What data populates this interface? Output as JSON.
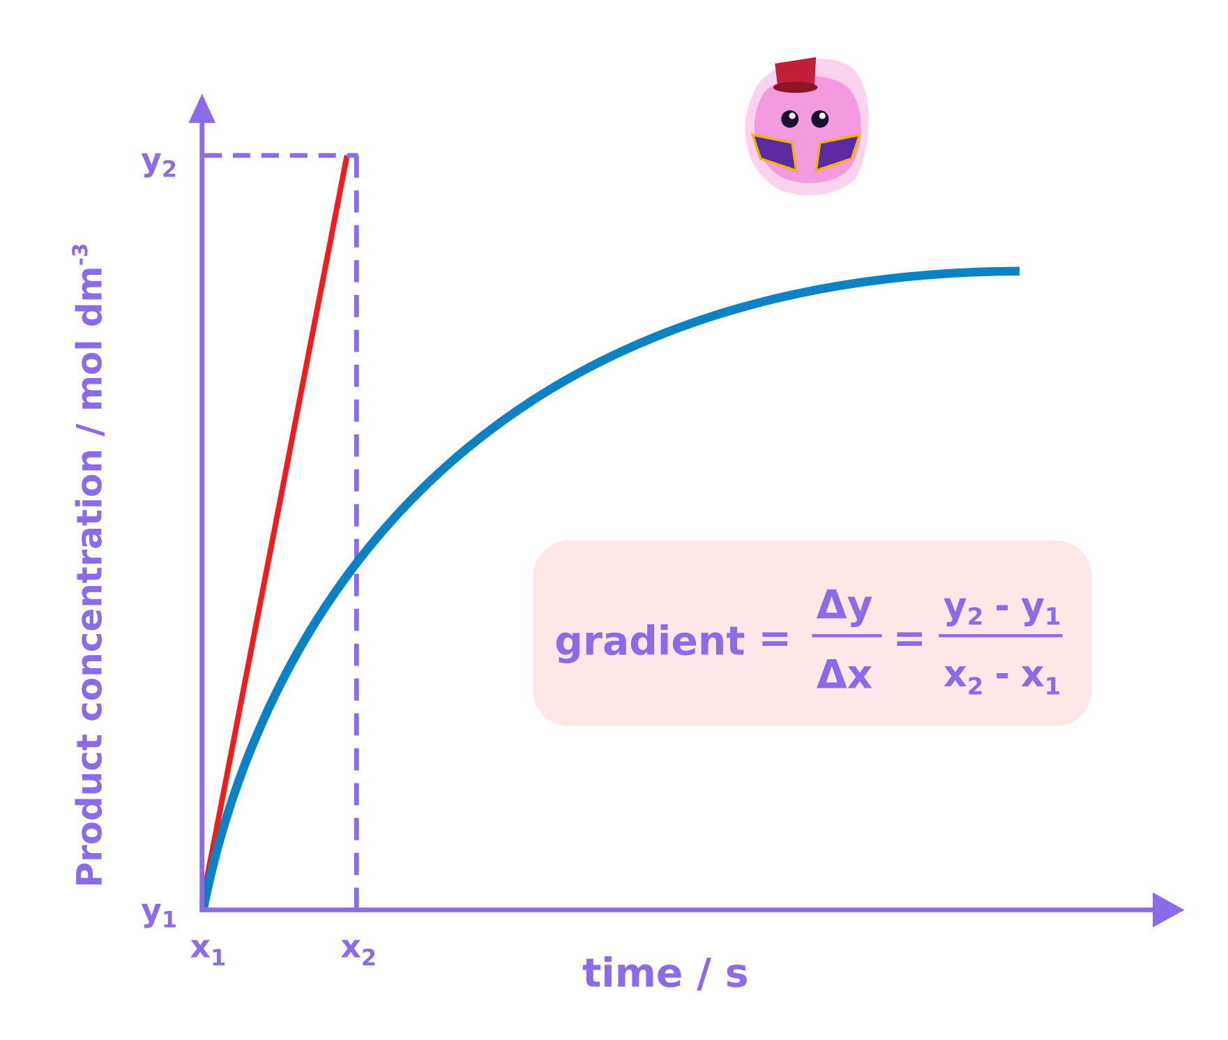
{
  "axes": {
    "y_label": "Product concentration / mol dm",
    "y_label_sup": "-3",
    "x_label": "time / s"
  },
  "points": {
    "y2": {
      "base": "y",
      "sub": "2"
    },
    "y1": {
      "base": "y",
      "sub": "1"
    },
    "x1": {
      "base": "x",
      "sub": "1"
    },
    "x2": {
      "base": "x",
      "sub": "2"
    }
  },
  "formula": {
    "lhs": "gradient",
    "eq1": "=",
    "frac1": {
      "num": "Δy",
      "den": "Δx"
    },
    "eq2": "=",
    "frac2": {
      "num": [
        {
          "base": "y",
          "sub": "2"
        },
        "-",
        {
          "base": "y",
          "sub": "1"
        }
      ],
      "den": [
        {
          "base": "x",
          "sub": "2"
        },
        "-",
        {
          "base": "x",
          "sub": "1"
        }
      ]
    }
  }
}
